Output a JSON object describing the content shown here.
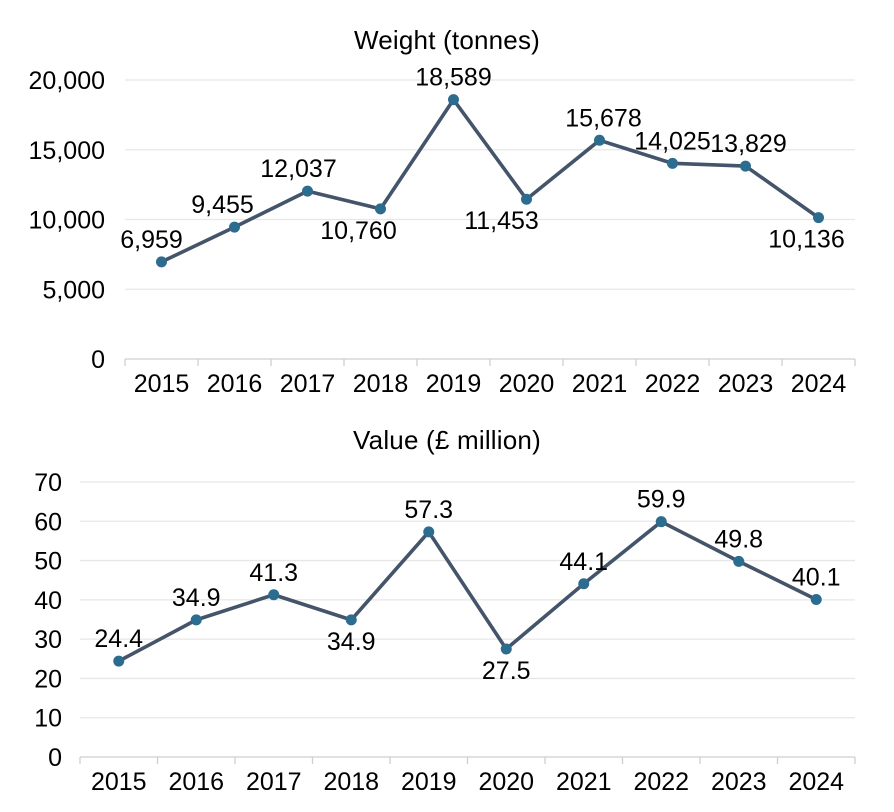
{
  "page": {
    "background": "#ffffff"
  },
  "colors": {
    "line": "#44546A",
    "marker": "#2C6C8F",
    "gridline": "#e7e7e7",
    "axis": "#cfcfcf",
    "text": "#000000"
  },
  "chart_data": [
    {
      "type": "line",
      "title": "Weight (tonnes)",
      "categories": [
        "2015",
        "2016",
        "2017",
        "2018",
        "2019",
        "2020",
        "2021",
        "2022",
        "2023",
        "2024"
      ],
      "values": [
        6959,
        9455,
        12037,
        10760,
        18589,
        11453,
        15678,
        14025,
        13829,
        10136
      ],
      "value_labels": [
        "6,959",
        "9,455",
        "12,037",
        "10,760",
        "18,589",
        "11,453",
        "15,678",
        "14,025",
        "13,829",
        "10,136"
      ],
      "label_pos": [
        "above",
        "above",
        "above",
        "below",
        "above",
        "below",
        "above",
        "above",
        "above",
        "below"
      ],
      "label_dx": [
        -10,
        -12,
        -9,
        -22,
        0,
        -25,
        4,
        0,
        3,
        -12
      ],
      "xlabel": "",
      "ylabel": "",
      "ylim": [
        0,
        20000
      ],
      "yticks": [
        0,
        5000,
        10000,
        15000,
        20000
      ],
      "ytick_labels": [
        "0",
        "5,000",
        "10,000",
        "15,000",
        "20,000"
      ],
      "grid": "horizontal",
      "legend": "none",
      "markers": true
    },
    {
      "type": "line",
      "title": "Value (£ million)",
      "categories": [
        "2015",
        "2016",
        "2017",
        "2018",
        "2019",
        "2020",
        "2021",
        "2022",
        "2023",
        "2024"
      ],
      "values": [
        24.4,
        34.9,
        41.3,
        34.9,
        57.3,
        27.5,
        44.1,
        59.9,
        49.8,
        40.1
      ],
      "value_labels": [
        "24.4",
        "34.9",
        "41.3",
        "34.9",
        "57.3",
        "27.5",
        "44.1",
        "59.9",
        "49.8",
        "40.1"
      ],
      "label_pos": [
        "above",
        "above",
        "above",
        "below",
        "above",
        "below",
        "above",
        "above",
        "above",
        "above"
      ],
      "label_dx": [
        0,
        0,
        0,
        0,
        0,
        0,
        0,
        0,
        0,
        0
      ],
      "xlabel": "",
      "ylabel": "",
      "ylim": [
        0,
        70
      ],
      "yticks": [
        0,
        10,
        20,
        30,
        40,
        50,
        60,
        70
      ],
      "ytick_labels": [
        "0",
        "10",
        "20",
        "30",
        "40",
        "50",
        "60",
        "70"
      ],
      "grid": "horizontal",
      "legend": "none",
      "markers": true
    }
  ]
}
